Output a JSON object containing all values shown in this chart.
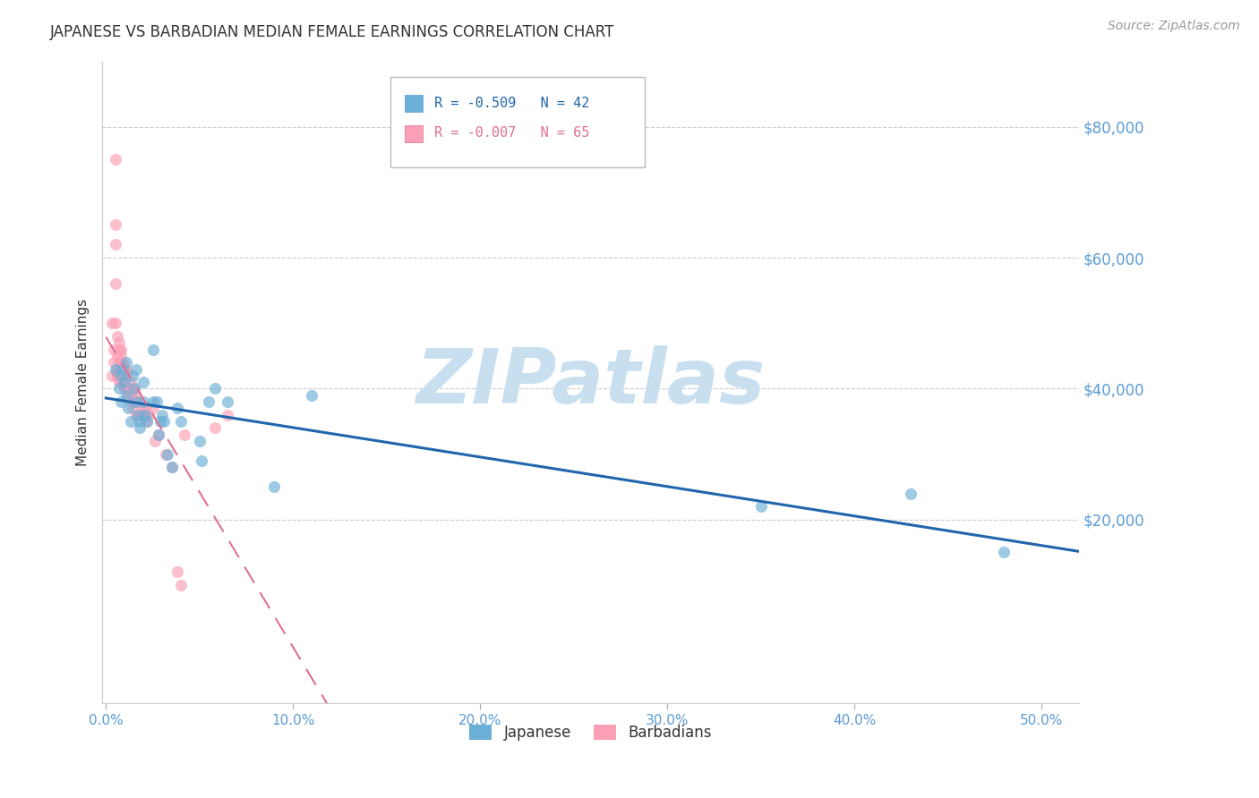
{
  "title": "JAPANESE VS BARBADIAN MEDIAN FEMALE EARNINGS CORRELATION CHART",
  "source": "Source: ZipAtlas.com",
  "ylabel": "Median Female Earnings",
  "watermark": "ZIPatlas",
  "legend_blue_r": "R = -0.509",
  "legend_blue_n": "N = 42",
  "legend_pink_r": "R = -0.007",
  "legend_pink_n": "N = 65",
  "legend_blue_label": "Japanese",
  "legend_pink_label": "Barbadians",
  "yticks": [
    0,
    20000,
    40000,
    60000,
    80000
  ],
  "ytick_labels": [
    "",
    "$20,000",
    "$40,000",
    "$60,000",
    "$80,000"
  ],
  "ylim": [
    -8000,
    90000
  ],
  "xlim": [
    -0.002,
    0.52
  ],
  "blue_color": "#6baed6",
  "pink_color": "#fa9fb5",
  "blue_line_color": "#2166ac",
  "pink_line_color": "#e07090",
  "axis_color": "#5b9bd5",
  "grid_color": "#cccccc",
  "title_color": "#333333",
  "watermark_color": "#c8dff0",
  "xtick_positions": [
    0.0,
    0.1,
    0.2,
    0.3,
    0.4,
    0.5
  ],
  "xtick_labels": [
    "0.0%",
    "10.0%",
    "20.0%",
    "30.0%",
    "40.0%",
    "50.0%"
  ],
  "japanese_x": [
    0.005,
    0.007,
    0.008,
    0.008,
    0.009,
    0.01,
    0.011,
    0.011,
    0.012,
    0.013,
    0.014,
    0.015,
    0.016,
    0.016,
    0.017,
    0.018,
    0.018,
    0.02,
    0.02,
    0.021,
    0.022,
    0.025,
    0.025,
    0.027,
    0.028,
    0.029,
    0.03,
    0.031,
    0.033,
    0.035,
    0.038,
    0.04,
    0.05,
    0.051,
    0.055,
    0.058,
    0.065,
    0.09,
    0.11,
    0.35,
    0.43,
    0.48
  ],
  "japanese_y": [
    43000,
    40000,
    42000,
    38000,
    43000,
    41000,
    44000,
    39000,
    37000,
    35000,
    42000,
    40000,
    43000,
    38000,
    36000,
    35000,
    34000,
    41000,
    38000,
    36000,
    35000,
    46000,
    38000,
    38000,
    33000,
    35000,
    36000,
    35000,
    30000,
    28000,
    37000,
    35000,
    32000,
    29000,
    38000,
    40000,
    38000,
    25000,
    39000,
    22000,
    24000,
    15000
  ],
  "barbadian_x": [
    0.003,
    0.003,
    0.004,
    0.004,
    0.005,
    0.005,
    0.005,
    0.005,
    0.005,
    0.006,
    0.006,
    0.006,
    0.006,
    0.006,
    0.007,
    0.007,
    0.007,
    0.007,
    0.007,
    0.007,
    0.007,
    0.008,
    0.008,
    0.008,
    0.008,
    0.008,
    0.008,
    0.009,
    0.009,
    0.009,
    0.009,
    0.01,
    0.01,
    0.01,
    0.01,
    0.011,
    0.011,
    0.011,
    0.012,
    0.012,
    0.013,
    0.013,
    0.014,
    0.014,
    0.015,
    0.015,
    0.016,
    0.016,
    0.017,
    0.018,
    0.02,
    0.02,
    0.021,
    0.022,
    0.023,
    0.025,
    0.026,
    0.028,
    0.032,
    0.035,
    0.038,
    0.04,
    0.042,
    0.058,
    0.065
  ],
  "barbadian_y": [
    42000,
    50000,
    46000,
    44000,
    75000,
    65000,
    62000,
    56000,
    50000,
    48000,
    45000,
    43000,
    42000,
    42000,
    47000,
    46000,
    44000,
    43000,
    43000,
    42000,
    41000,
    46000,
    45000,
    44000,
    43000,
    42000,
    41000,
    44000,
    43000,
    42000,
    41000,
    43000,
    42000,
    41000,
    40000,
    43000,
    42000,
    40000,
    40000,
    39000,
    41000,
    39000,
    38000,
    37000,
    40000,
    38000,
    39000,
    36000,
    38000,
    36000,
    37000,
    36000,
    37000,
    35000,
    36000,
    37000,
    32000,
    33000,
    30000,
    28000,
    12000,
    10000,
    33000,
    34000,
    36000
  ]
}
